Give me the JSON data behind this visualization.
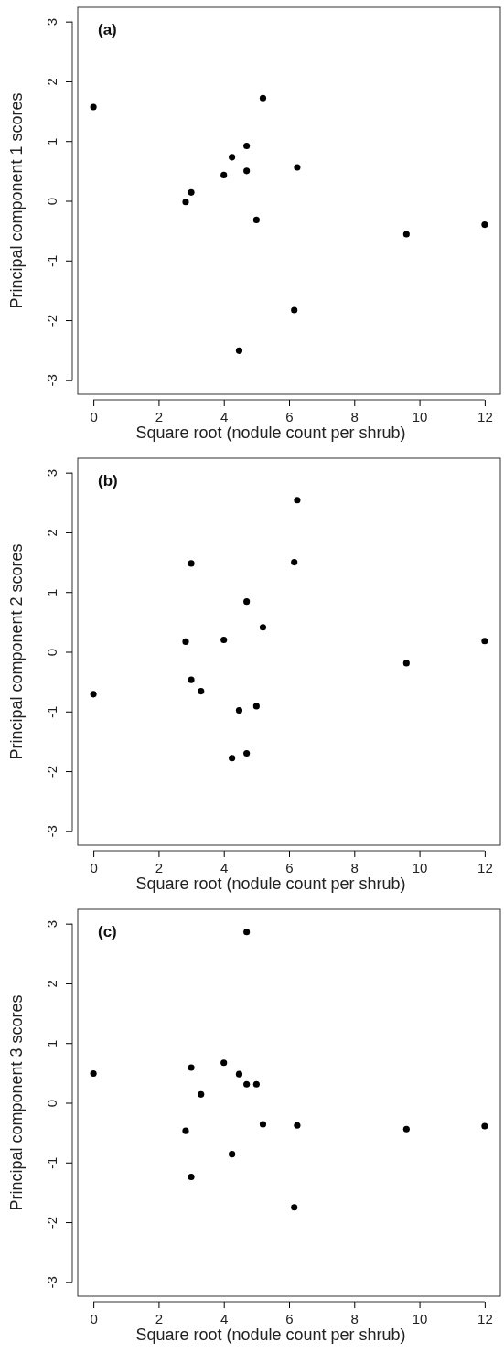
{
  "chart_data": [
    {
      "type": "scatter",
      "xlabel": "Square root (nodule count per shrub)",
      "ylabel": "Principal component 1 scores",
      "annotations": [
        "(a)"
      ],
      "marker": "circle",
      "xlim": [
        -0.48,
        12.48
      ],
      "ylim": [
        -3.24,
        3.24
      ],
      "xticks": [
        0,
        2,
        4,
        6,
        8,
        10,
        12
      ],
      "yticks": [
        -3,
        -2,
        -1,
        0,
        1,
        2,
        3
      ],
      "x": [
        0,
        2.83,
        3.0,
        4.0,
        4.25,
        4.47,
        4.7,
        4.7,
        5.0,
        5.2,
        6.16,
        6.25,
        9.6,
        12
      ],
      "series": [
        {
          "color": "#000000",
          "values": [
            1.57,
            -0.02,
            0.14,
            0.43,
            0.73,
            -2.51,
            0.92,
            0.5,
            -0.32,
            1.72,
            -1.83,
            0.56,
            -0.56,
            -0.4
          ]
        }
      ]
    },
    {
      "type": "scatter",
      "xlabel": "Square root (nodule count per shrub)",
      "ylabel": "Principal component 2 scores",
      "annotations": [
        "(b)"
      ],
      "marker": "circle",
      "xlim": [
        -0.48,
        12.48
      ],
      "ylim": [
        -3.24,
        3.24
      ],
      "xticks": [
        0,
        2,
        4,
        6,
        8,
        10,
        12
      ],
      "yticks": [
        -3,
        -2,
        -1,
        0,
        1,
        2,
        3
      ],
      "x": [
        0,
        2.83,
        3.0,
        3.0,
        3.3,
        4.0,
        4.25,
        4.47,
        4.7,
        4.7,
        5.0,
        5.2,
        6.16,
        6.25,
        9.6,
        12
      ],
      "series": [
        {
          "color": "#000000",
          "values": [
            -0.71,
            0.17,
            1.48,
            -0.47,
            -0.66,
            0.2,
            -1.78,
            -0.98,
            0.84,
            -1.7,
            -0.91,
            0.41,
            1.5,
            2.54,
            -0.19,
            0.18
          ]
        }
      ]
    },
    {
      "type": "scatter",
      "xlabel": "Square root (nodule count per shrub)",
      "ylabel": "Principal component 3 scores",
      "annotations": [
        "(c)"
      ],
      "marker": "circle",
      "xlim": [
        -0.48,
        12.48
      ],
      "ylim": [
        -3.24,
        3.24
      ],
      "xticks": [
        0,
        2,
        4,
        6,
        8,
        10,
        12
      ],
      "yticks": [
        -3,
        -2,
        -1,
        0,
        1,
        2,
        3
      ],
      "x": [
        0,
        2.83,
        3.0,
        3.0,
        3.3,
        4.0,
        4.25,
        4.47,
        4.7,
        4.7,
        5.0,
        5.2,
        6.16,
        6.25,
        9.6,
        12
      ],
      "series": [
        {
          "color": "#000000",
          "values": [
            0.49,
            -0.47,
            0.59,
            -1.24,
            0.14,
            0.67,
            -0.86,
            0.48,
            0.31,
            2.86,
            0.31,
            -0.36,
            -1.75,
            -0.38,
            -0.44,
            -0.39
          ]
        }
      ]
    }
  ]
}
